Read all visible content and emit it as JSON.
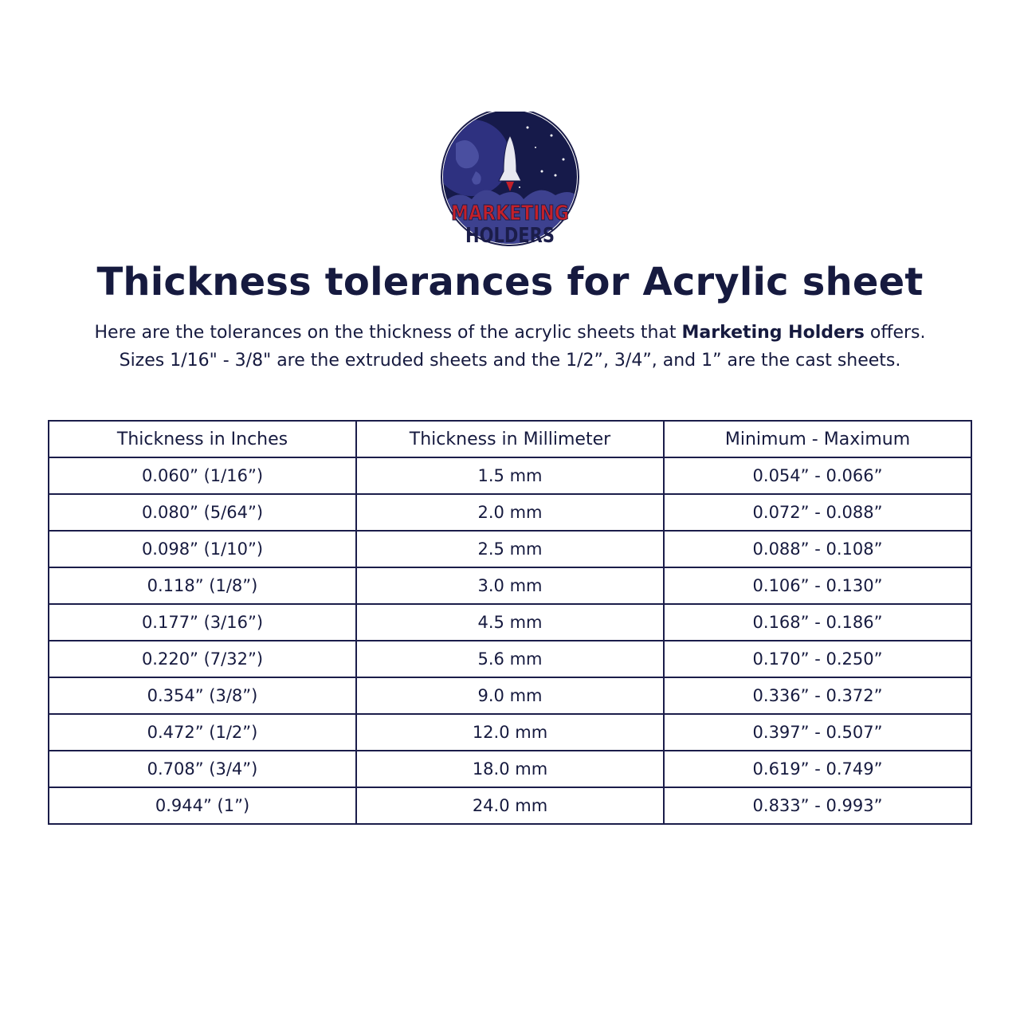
{
  "logo": {
    "line1": "MARKETING",
    "line2": "HOLDERS",
    "colors": {
      "navy": "#1b1d4a",
      "red": "#c3202a",
      "sky": "#2a2d6e"
    }
  },
  "title": "Thickness tolerances for Acrylic sheet",
  "intro": {
    "line1_before": "Here are the tolerances on the thickness of the acrylic sheets that ",
    "line1_bold": "Marketing Holders",
    "line1_after": " offers.",
    "line2": "Sizes 1/16\" - 3/8\" are the extruded sheets and the 1/2”, 3/4”, and 1” are the cast sheets."
  },
  "table": {
    "headers": [
      "Thickness in Inches",
      "Thickness in Millimeter",
      "Minimum - Maximum"
    ],
    "rows": [
      [
        "0.060” (1/16”)",
        "1.5 mm",
        "0.054” - 0.066”"
      ],
      [
        "0.080” (5/64”)",
        "2.0 mm",
        "0.072” - 0.088”"
      ],
      [
        "0.098” (1/10”)",
        "2.5 mm",
        "0.088” - 0.108”"
      ],
      [
        "0.118” (1/8”)",
        "3.0 mm",
        "0.106” - 0.130”"
      ],
      [
        "0.177” (3/16”)",
        "4.5 mm",
        "0.168” - 0.186”"
      ],
      [
        "0.220” (7/32”)",
        "5.6 mm",
        "0.170” - 0.250”"
      ],
      [
        "0.354” (3/8”)",
        "9.0 mm",
        "0.336” - 0.372”"
      ],
      [
        "0.472” (1/2”)",
        "12.0 mm",
        "0.397” - 0.507”"
      ],
      [
        "0.708” (3/4”)",
        "18.0 mm",
        "0.619” - 0.749”"
      ],
      [
        "0.944” (1”)",
        "24.0 mm",
        "0.833” - 0.993”"
      ]
    ]
  }
}
